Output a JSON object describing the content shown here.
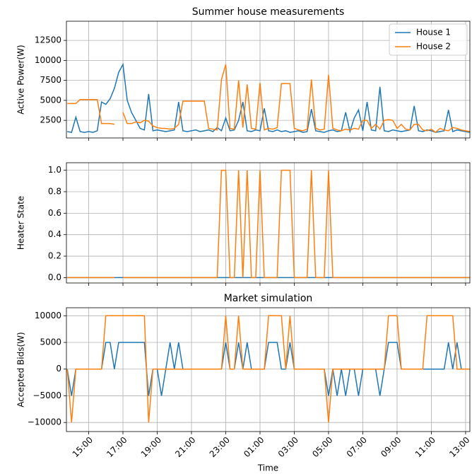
{
  "chart_data": [
    {
      "type": "line",
      "title": "Summer house measurements",
      "ylabel": "Active Power(W)",
      "grid": true,
      "legend": "upper right",
      "x": [
        13.75,
        14,
        14.25,
        14.5,
        14.75,
        15,
        15.25,
        15.5,
        15.75,
        16,
        16.25,
        16.5,
        16.75,
        17,
        17.25,
        17.5,
        17.75,
        18,
        18.25,
        18.5,
        18.75,
        19,
        19.25,
        19.5,
        19.75,
        20,
        20.25,
        20.5,
        20.75,
        21,
        21.25,
        21.5,
        21.75,
        22,
        22.25,
        22.5,
        22.75,
        23,
        23.25,
        23.5,
        23.75,
        24,
        24.25,
        24.5,
        24.75,
        25,
        25.25,
        25.5,
        25.75,
        26,
        26.25,
        26.5,
        26.75,
        27,
        27.25,
        27.5,
        27.75,
        28,
        28.25,
        28.5,
        28.75,
        29,
        29.25,
        29.5,
        29.75,
        30,
        30.25,
        30.5,
        30.75,
        31,
        31.25,
        31.5,
        31.75,
        32,
        32.25,
        32.5,
        32.75,
        33,
        33.25,
        33.5,
        33.75,
        34,
        34.25,
        34.5,
        34.75,
        35,
        35.25,
        35.5,
        35.75,
        36,
        36.25,
        36.5,
        36.75,
        37,
        37.25
      ],
      "xlim": [
        13.7,
        37.25
      ],
      "ylim": [
        300,
        14900
      ],
      "yticks": [
        2500,
        5000,
        7500,
        10000,
        12500
      ],
      "series": [
        {
          "name": "House 1",
          "color": "#1f77b4",
          "values": [
            1100,
            1000,
            2900,
            1100,
            1000,
            1100,
            1000,
            1200,
            4800,
            4500,
            5200,
            6500,
            8500,
            9500,
            5000,
            3500,
            2500,
            1500,
            1300,
            5800,
            1200,
            1300,
            1200,
            1100,
            1200,
            1300,
            4800,
            1200,
            1100,
            1200,
            1300,
            1100,
            1200,
            1300,
            1100,
            1600,
            1200,
            2800,
            1200,
            1300,
            2500,
            4800,
            1200,
            1100,
            1300,
            1200,
            4000,
            1200,
            1100,
            1300,
            1100,
            1200,
            1000,
            1100,
            1200,
            1000,
            1100,
            3900,
            1200,
            1100,
            1000,
            1200,
            1300,
            1100,
            1200,
            3500,
            1100,
            2800,
            3800,
            1200,
            4800,
            1300,
            1200,
            6700,
            1200,
            1100,
            1300,
            1200,
            1100,
            1200,
            1300,
            4300,
            1200,
            1100,
            1300,
            1200,
            1000,
            1100,
            1200,
            3800,
            1100,
            1300,
            1200,
            1100,
            1000
          ]
        },
        {
          "name": "House 2",
          "color": "#ff7f0e",
          "values": [
            4600,
            4600,
            4600,
            5100,
            5100,
            5100,
            5100,
            5100,
            2100,
            2100,
            2100,
            2000,
            null,
            3500,
            2100,
            2100,
            2300,
            2200,
            2500,
            2400,
            1800,
            1600,
            1500,
            1500,
            1400,
            1500,
            2000,
            4900,
            4900,
            4900,
            4900,
            4900,
            4900,
            1500,
            1400,
            1300,
            7600,
            9500,
            1500,
            1400,
            7500,
            1600,
            7000,
            1500,
            1400,
            7200,
            1300,
            1500,
            1400,
            1600,
            7100,
            7100,
            7100,
            1500,
            1300,
            1200,
            1400,
            7600,
            1500,
            1300,
            1400,
            8200,
            1500,
            1300,
            1200,
            1400,
            1300,
            1500,
            1400,
            2500,
            2500,
            1500,
            2000,
            1400,
            2500,
            2600,
            2500,
            1500,
            2000,
            1400,
            1300,
            2000,
            2000,
            1300,
            1200,
            1400,
            1000,
            1500,
            1300,
            1200,
            1600,
            1500,
            1300,
            1200,
            1100
          ]
        }
      ]
    },
    {
      "type": "line",
      "ylabel": "Heater State",
      "grid": true,
      "x": [
        13.75,
        14,
        14.25,
        14.5,
        14.75,
        15,
        15.25,
        15.5,
        15.75,
        16,
        16.25,
        16.5,
        16.75,
        17,
        17.25,
        17.5,
        17.75,
        18,
        18.25,
        18.5,
        18.75,
        19,
        19.25,
        19.5,
        19.75,
        20,
        20.25,
        20.5,
        20.75,
        21,
        21.25,
        21.5,
        21.75,
        22,
        22.25,
        22.5,
        22.75,
        23,
        23.25,
        23.5,
        23.75,
        24,
        24.25,
        24.5,
        24.75,
        25,
        25.25,
        25.5,
        25.75,
        26,
        26.25,
        26.5,
        26.75,
        27,
        27.25,
        27.5,
        27.75,
        28,
        28.25,
        28.5,
        28.75,
        29,
        29.25,
        29.5,
        29.75,
        30,
        30.25,
        30.5,
        30.75,
        31,
        31.25,
        31.5,
        31.75,
        32,
        32.25,
        32.5,
        32.75,
        33,
        33.25,
        33.5,
        33.75,
        34,
        34.25,
        34.5,
        34.75,
        35,
        35.25,
        35.5,
        35.75,
        36,
        36.25,
        36.5,
        36.75,
        37,
        37.25
      ],
      "xlim": [
        13.7,
        37.25
      ],
      "ylim": [
        -0.05,
        1.07
      ],
      "yticks": [
        {
          "value": 0,
          "label": "0.0"
        },
        0.2,
        0.4,
        0.6,
        0.8,
        {
          "value": 1,
          "label": "1.0"
        }
      ],
      "series": [
        {
          "name": "House 1",
          "color": "#1f77b4",
          "values": [
            0,
            0,
            0,
            0,
            0,
            0,
            0,
            0,
            0,
            0,
            0,
            0,
            0,
            0,
            0,
            0,
            0,
            0,
            0,
            0,
            0,
            0,
            0,
            0,
            0,
            0,
            0,
            0,
            0,
            0,
            0,
            0,
            0,
            0,
            0,
            0,
            0,
            0,
            0,
            0,
            0,
            0,
            0,
            0,
            0,
            0,
            0,
            0,
            0,
            0,
            0,
            0,
            0,
            0,
            0,
            0,
            0,
            0,
            0,
            0,
            0,
            0,
            0,
            0,
            0,
            0,
            0,
            0,
            0,
            0,
            0,
            0,
            0,
            0,
            0,
            0,
            0,
            0,
            0,
            0,
            0,
            0,
            0,
            0,
            0,
            0,
            0,
            0,
            0,
            0,
            0,
            0,
            0,
            0,
            0
          ]
        },
        {
          "name": "House 2",
          "color": "#ff7f0e",
          "values": [
            0,
            0,
            0,
            0,
            0,
            0,
            0,
            0,
            0,
            0,
            0,
            0,
            null,
            0,
            0,
            0,
            0,
            0,
            0,
            0,
            0,
            0,
            0,
            0,
            0,
            0,
            0,
            0,
            0,
            0,
            0,
            0,
            0,
            0,
            0,
            0,
            1,
            1,
            0,
            0,
            1,
            0,
            1,
            0,
            0,
            1,
            0,
            0,
            0,
            0,
            1,
            1,
            1,
            0,
            0,
            0,
            0,
            1,
            0,
            0,
            0,
            1,
            0,
            0,
            0,
            0,
            0,
            0,
            0,
            0,
            0,
            0,
            0,
            0,
            0,
            0,
            0,
            0,
            0,
            0,
            0,
            0,
            0,
            0,
            0,
            0,
            0,
            0,
            0,
            0,
            0,
            0,
            0,
            0,
            0
          ]
        }
      ]
    },
    {
      "type": "line",
      "title": "Market simulation",
      "ylabel": "Accepted Bids(W)",
      "xlabel": "Time",
      "grid": true,
      "x": [
        13.75,
        14,
        14.25,
        14.5,
        14.75,
        15,
        15.25,
        15.5,
        15.75,
        16,
        16.25,
        16.5,
        16.75,
        17,
        17.25,
        17.5,
        17.75,
        18,
        18.25,
        18.5,
        18.75,
        19,
        19.25,
        19.5,
        19.75,
        20,
        20.25,
        20.5,
        20.75,
        21,
        21.25,
        21.5,
        21.75,
        22,
        22.25,
        22.5,
        22.75,
        23,
        23.25,
        23.5,
        23.75,
        24,
        24.25,
        24.5,
        24.75,
        25,
        25.25,
        25.5,
        25.75,
        26,
        26.25,
        26.5,
        26.75,
        27,
        27.25,
        27.5,
        27.75,
        28,
        28.25,
        28.5,
        28.75,
        29,
        29.25,
        29.5,
        29.75,
        30,
        30.25,
        30.5,
        30.75,
        31,
        31.25,
        31.5,
        31.75,
        32,
        32.25,
        32.5,
        32.75,
        33,
        33.25,
        33.5,
        33.75,
        34,
        34.25,
        34.5,
        34.75,
        35,
        35.25,
        35.5,
        35.75,
        36,
        36.25,
        36.5,
        36.75,
        37,
        37.25
      ],
      "xlim": [
        13.7,
        37.25
      ],
      "ylim": [
        -11700,
        11500
      ],
      "yticks": [
        {
          "value": -10000,
          "label": "−10000"
        },
        {
          "value": -5000,
          "label": "−5000"
        },
        0,
        5000,
        10000
      ],
      "xticks": [
        {
          "value": 15,
          "label": "15:00"
        },
        {
          "value": 17,
          "label": "17:00"
        },
        {
          "value": 19,
          "label": "19:00"
        },
        {
          "value": 21,
          "label": "21:00"
        },
        {
          "value": 23,
          "label": "23:00"
        },
        {
          "value": 25,
          "label": "01:00"
        },
        {
          "value": 27,
          "label": "03:00"
        },
        {
          "value": 29,
          "label": "05:00"
        },
        {
          "value": 31,
          "label": "07:00"
        },
        {
          "value": 33,
          "label": "09:00"
        },
        {
          "value": 35,
          "label": "11:00"
        },
        {
          "value": 37,
          "label": "13:00"
        }
      ],
      "series": [
        {
          "name": "House 1",
          "color": "#1f77b4",
          "values": [
            0,
            -5000,
            0,
            0,
            0,
            0,
            0,
            0,
            0,
            5000,
            5000,
            0,
            5000,
            5000,
            5000,
            5000,
            5000,
            5000,
            5000,
            -5000,
            0,
            0,
            -5000,
            0,
            5000,
            0,
            5000,
            0,
            0,
            0,
            0,
            0,
            0,
            0,
            0,
            0,
            0,
            5000,
            0,
            0,
            5000,
            0,
            5000,
            0,
            0,
            0,
            0,
            5000,
            5000,
            5000,
            0,
            0,
            5000,
            0,
            0,
            0,
            0,
            0,
            0,
            0,
            0,
            -5000,
            0,
            -5000,
            0,
            -5000,
            0,
            0,
            -5000,
            0,
            0,
            0,
            0,
            -5000,
            0,
            5000,
            5000,
            5000,
            0,
            0,
            0,
            0,
            0,
            0,
            0,
            0,
            0,
            0,
            0,
            5000,
            0,
            5000,
            0,
            0,
            0
          ]
        },
        {
          "name": "House 2",
          "color": "#ff7f0e",
          "values": [
            0,
            -10000,
            0,
            0,
            0,
            0,
            0,
            0,
            0,
            10000,
            10000,
            10000,
            10000,
            10000,
            10000,
            10000,
            10000,
            10000,
            10000,
            -10000,
            0,
            0,
            0,
            0,
            0,
            0,
            0,
            0,
            0,
            0,
            0,
            0,
            0,
            0,
            0,
            0,
            0,
            10000,
            0,
            0,
            10000,
            0,
            0,
            0,
            0,
            0,
            0,
            10000,
            10000,
            10000,
            10000,
            0,
            10000,
            0,
            0,
            0,
            0,
            0,
            0,
            0,
            0,
            -10000,
            0,
            0,
            0,
            0,
            0,
            0,
            0,
            0,
            0,
            0,
            0,
            0,
            0,
            10000,
            10000,
            10000,
            0,
            0,
            0,
            0,
            0,
            0,
            10000,
            10000,
            10000,
            10000,
            10000,
            10000,
            10000,
            0,
            0,
            0,
            0
          ]
        }
      ]
    }
  ]
}
